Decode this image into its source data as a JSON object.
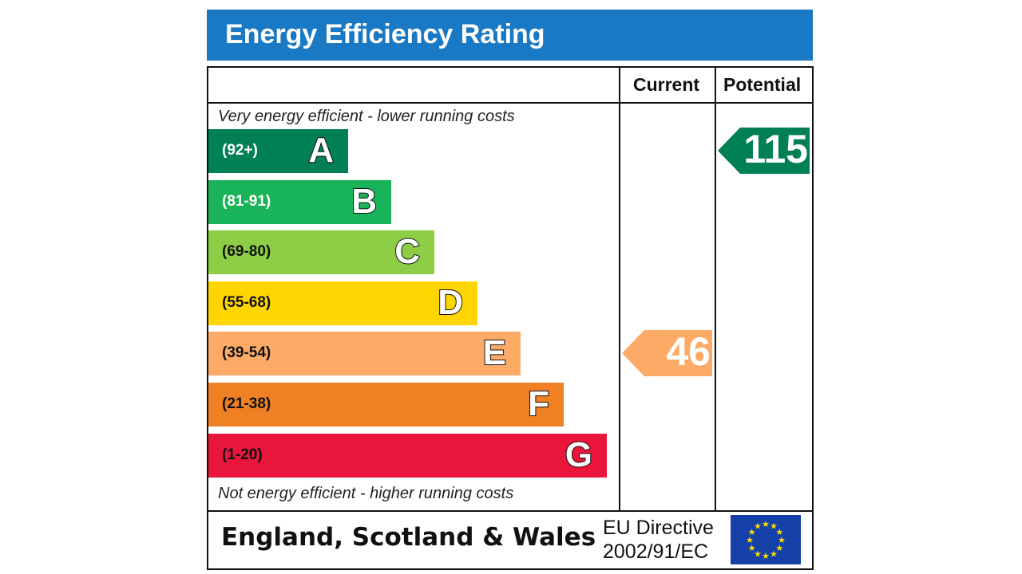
{
  "title": "Energy Efficiency Rating",
  "columns": {
    "current": "Current",
    "potential": "Potential"
  },
  "notes": {
    "top": "Very energy efficient - lower running costs",
    "bottom": "Not energy efficient - higher running costs"
  },
  "footer": {
    "region": "England, Scotland & Wales",
    "directive_line1": "EU Directive",
    "directive_line2": "2002/91/EC",
    "flag_icon": "eu-flag-icon"
  },
  "chart_data": {
    "type": "bar",
    "title": "Energy Efficiency Rating",
    "bands": [
      {
        "letter": "A",
        "range": "(92+)",
        "color": "#008054",
        "range_color": "#ffffff"
      },
      {
        "letter": "B",
        "range": "(81-91)",
        "color": "#19b459",
        "range_color": "#ffffff"
      },
      {
        "letter": "C",
        "range": "(69-80)",
        "color": "#8dce46",
        "range_color": "#111111"
      },
      {
        "letter": "D",
        "range": "(55-68)",
        "color": "#ffd500",
        "range_color": "#111111"
      },
      {
        "letter": "E",
        "range": "(39-54)",
        "color": "#fcaa65",
        "range_color": "#111111"
      },
      {
        "letter": "F",
        "range": "(21-38)",
        "color": "#ef8023",
        "range_color": "#111111"
      },
      {
        "letter": "G",
        "range": "(1-20)",
        "color": "#e9153b",
        "range_color": "#111111"
      }
    ],
    "current": {
      "value": "46",
      "band": "E",
      "color": "#fcaa65"
    },
    "potential": {
      "value": "115",
      "band": "A",
      "color": "#008054"
    }
  }
}
